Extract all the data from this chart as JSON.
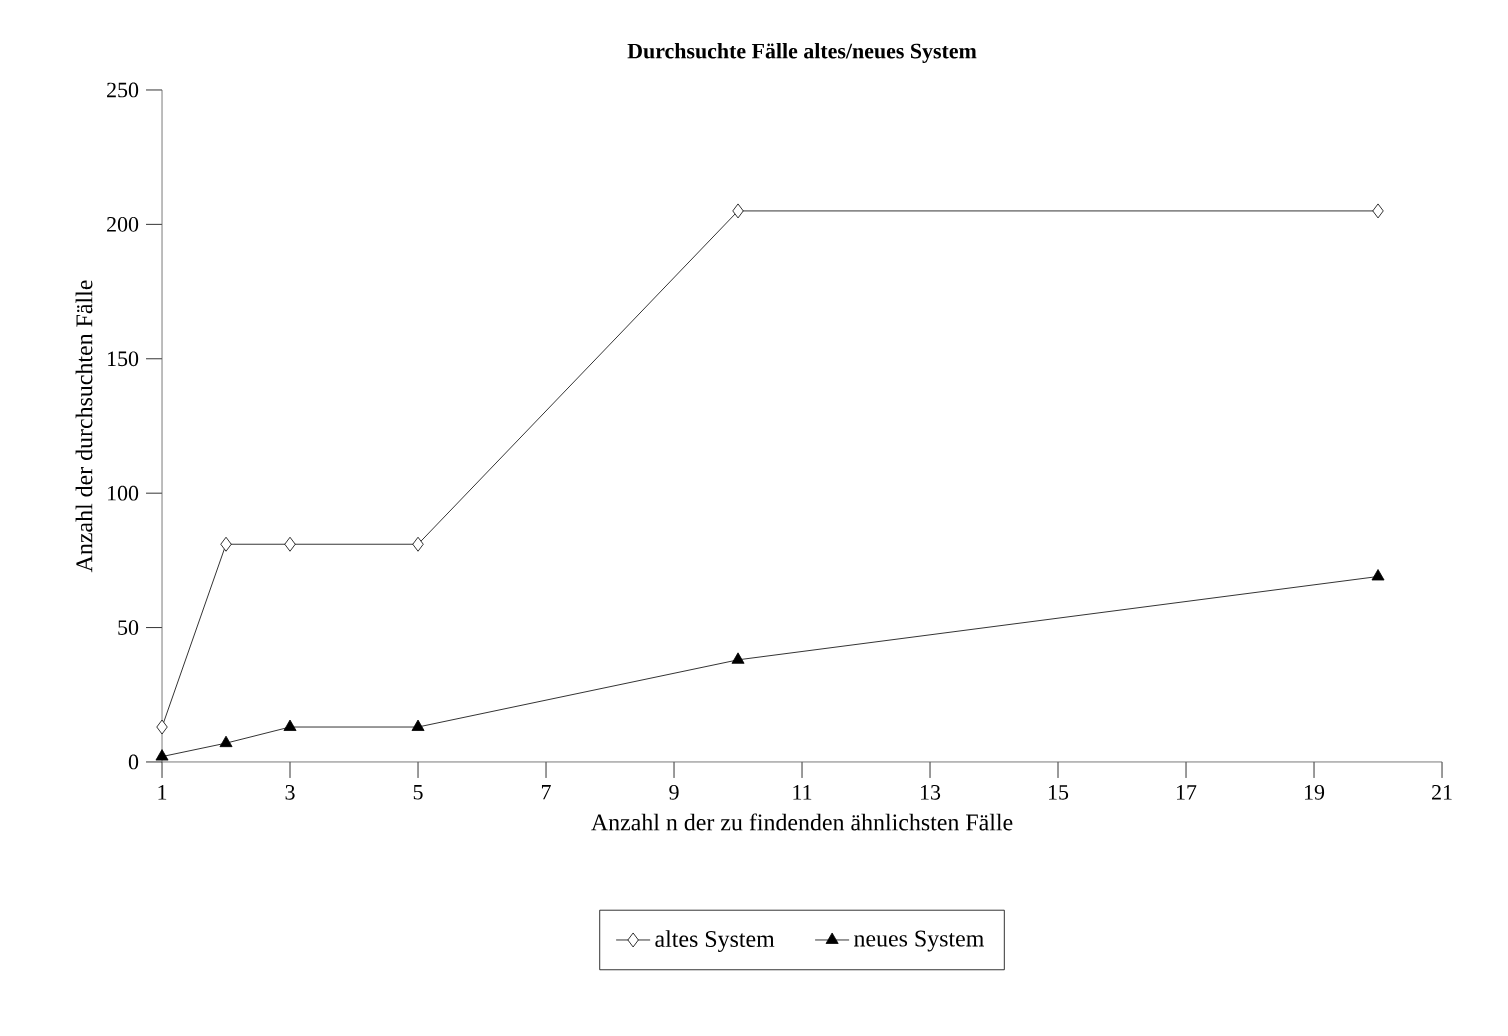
{
  "chart_data": {
    "type": "line",
    "title": "Durchsuchte Fälle altes/neues System",
    "xlabel": "Anzahl n der zu findenden ähnlichsten Fälle",
    "ylabel": "Anzahl der durchsuchten Fälle",
    "x": [
      1,
      2,
      3,
      5,
      10,
      20
    ],
    "series": [
      {
        "name": "altes System",
        "color": "#000000",
        "marker": "diamond",
        "values": [
          13,
          81,
          81,
          81,
          205,
          205
        ]
      },
      {
        "name": "neues System",
        "color": "#000000",
        "marker": "triangle",
        "values": [
          2,
          7,
          13,
          13,
          38,
          69
        ]
      }
    ],
    "xlim": [
      1,
      21
    ],
    "xticks": [
      1,
      3,
      5,
      7,
      9,
      11,
      13,
      15,
      17,
      19,
      21
    ],
    "ylim": [
      0,
      250
    ],
    "yticks": [
      0,
      50,
      100,
      150,
      200,
      250
    ],
    "grid": false,
    "legend": "bottom",
    "line_style": "solid"
  }
}
